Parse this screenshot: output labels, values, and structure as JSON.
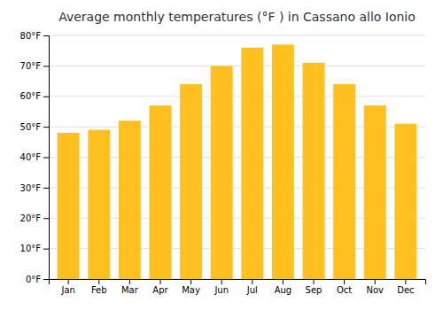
{
  "chart_data": {
    "type": "bar",
    "title": "Average monthly temperatures (°F ) in Cassano allo Ionio",
    "categories": [
      "Jan",
      "Feb",
      "Mar",
      "Apr",
      "May",
      "Jun",
      "Jul",
      "Aug",
      "Sep",
      "Oct",
      "Nov",
      "Dec"
    ],
    "values": [
      48,
      49,
      52,
      57,
      64,
      70,
      76,
      77,
      71,
      64,
      57,
      51
    ],
    "color": "#FFC020",
    "ylim": [
      0,
      80
    ],
    "yticks": [
      {
        "value": 0,
        "label": "0°F"
      },
      {
        "value": 10,
        "label": "10°F"
      },
      {
        "value": 20,
        "label": "20°F"
      },
      {
        "value": 30,
        "label": "30°F"
      },
      {
        "value": 40,
        "label": "40°F"
      },
      {
        "value": 50,
        "label": "50°F"
      },
      {
        "value": 60,
        "label": "60°F"
      },
      {
        "value": 70,
        "label": "70°F"
      },
      {
        "value": 80,
        "label": "80°F"
      }
    ],
    "grid": true
  }
}
